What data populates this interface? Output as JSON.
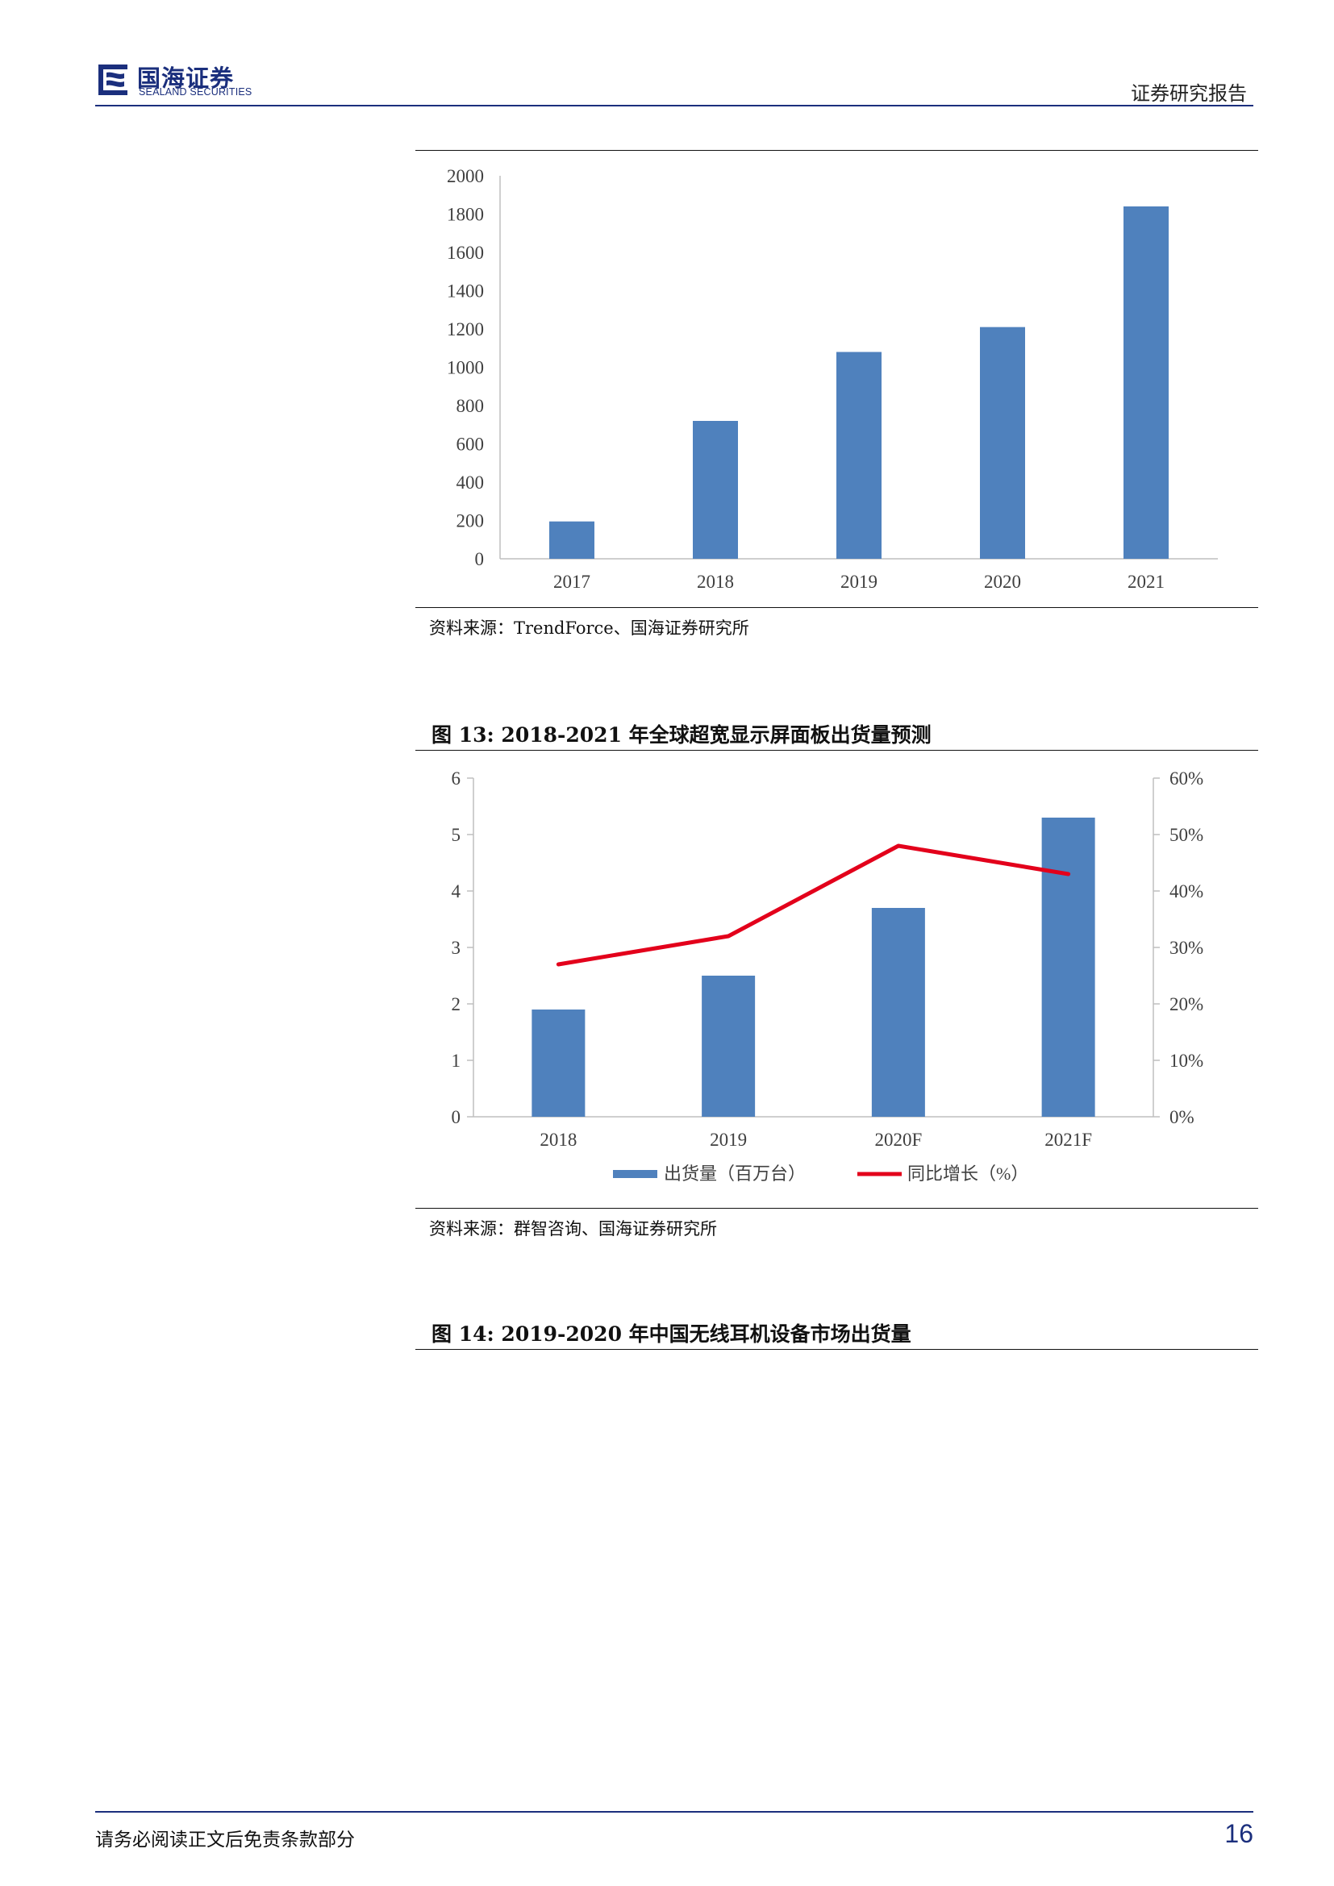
{
  "header": {
    "brand_cn": "国海证券",
    "brand_en": "SEALAND SECURITIES",
    "report_type": "证券研究报告",
    "brand_color": "#1b2f7d"
  },
  "figure12": {
    "source": "资料来源：TrendForce、国海证券研究所",
    "chart_data": {
      "type": "bar",
      "categories": [
        "2017",
        "2018",
        "2019",
        "2020",
        "2021"
      ],
      "values": [
        195,
        720,
        1080,
        1210,
        1840
      ],
      "ylim": [
        0,
        2000
      ],
      "yticks": [
        "0",
        "200",
        "400",
        "600",
        "800",
        "1000",
        "1200",
        "1400",
        "1600",
        "1800",
        "2000"
      ],
      "bar_color": "#4f81bd",
      "grid": false
    }
  },
  "figure13": {
    "title": "图 13:  2018-2021 年全球超宽显示屏面板出货量预测",
    "source": "资料来源：群智咨询、国海证券研究所",
    "chart_data": {
      "type": "bar+line",
      "categories": [
        "2018",
        "2019",
        "2020F",
        "2021F"
      ],
      "series": [
        {
          "name": "出货量（百万台）",
          "type": "bar",
          "axis": "left",
          "values": [
            1.9,
            2.5,
            3.7,
            5.3
          ],
          "color": "#4f81bd"
        },
        {
          "name": "同比增长（%）",
          "type": "line",
          "axis": "right",
          "values": [
            27,
            32,
            48,
            43
          ],
          "color": "#e3001b"
        }
      ],
      "ylim_left": [
        0,
        6
      ],
      "yticks_left": [
        "0",
        "1",
        "2",
        "3",
        "4",
        "5",
        "6"
      ],
      "ylim_right": [
        0,
        60
      ],
      "yticks_right": [
        "0%",
        "10%",
        "20%",
        "30%",
        "40%",
        "50%",
        "60%"
      ],
      "legend_position": "bottom",
      "grid": false
    }
  },
  "figure14": {
    "title": "图 14:  2019-2020 年中国无线耳机设备市场出货量"
  },
  "footer": {
    "disclaimer": "请务必阅读正文后免责条款部分",
    "page_number": "16"
  }
}
